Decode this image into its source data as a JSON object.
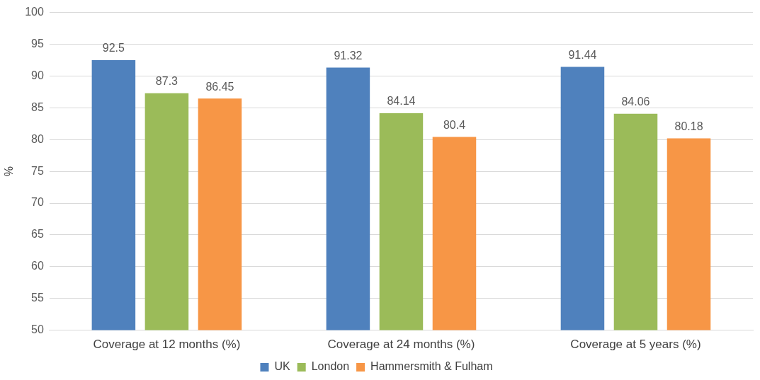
{
  "chart_data": {
    "type": "bar",
    "ylabel": "%",
    "categories": [
      "Coverage at 12 months (%)",
      "Coverage at 24 months (%)",
      "Coverage at 5 years (%)"
    ],
    "series": [
      {
        "name": "UK",
        "color": "#4f81bd",
        "values": [
          92.5,
          91.32,
          91.44
        ]
      },
      {
        "name": "London",
        "color": "#9bbb59",
        "values": [
          87.3,
          84.14,
          84.06
        ]
      },
      {
        "name": "Hammersmith & Fulham",
        "color": "#f79646",
        "values": [
          86.45,
          80.4,
          80.18
        ]
      }
    ],
    "ylim": [
      50,
      100
    ],
    "yticks": [
      50,
      55,
      60,
      65,
      70,
      75,
      80,
      85,
      90,
      95,
      100
    ],
    "grid": "y",
    "legend": "bottom",
    "data_labels": true
  }
}
